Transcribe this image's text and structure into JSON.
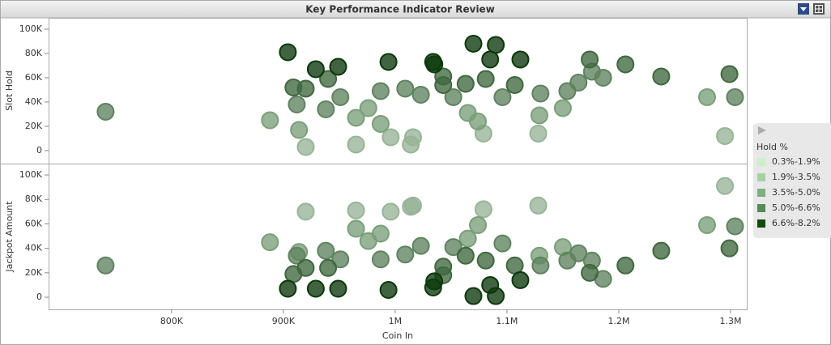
{
  "title": "Key Performance Indicator Review",
  "legend": {
    "title": "Hold %"
  },
  "chart_data": [
    {
      "type": "scatter",
      "ylabel": "Slot Hold",
      "xlim": [
        690000,
        1314500
      ],
      "ylim": [
        -10700,
        109300
      ],
      "yticks": [
        0,
        {
          "value": 20000,
          "label": "20K"
        },
        {
          "value": 40000,
          "label": "40K"
        },
        {
          "value": 60000,
          "label": "60K"
        },
        {
          "value": 80000,
          "label": "80K"
        },
        {
          "value": 100000,
          "label": "100K"
        }
      ],
      "series": [
        {
          "name": "0.3%-1.9%",
          "color": "#c9f0c9",
          "x": [
            920000,
            965000,
            1016000,
            996000,
            1014000,
            1079000,
            1128000,
            1295000
          ],
          "values": [
            3000,
            5000,
            11000,
            11000,
            5000,
            14000,
            14000,
            12000
          ]
        },
        {
          "name": "1.9%-3.5%",
          "color": "#a3d3a3",
          "x": [
            888000,
            1279000,
            1150000,
            1129000,
            976000,
            1074000,
            1065000,
            987000,
            965000,
            914000
          ],
          "values": [
            25000,
            44000,
            35000,
            29000,
            35000,
            24000,
            31000,
            22000,
            27000,
            17000
          ]
        },
        {
          "name": "3.5%-5.0%",
          "color": "#7fae7f",
          "x": [
            741000,
            1304000,
            1186000,
            1176000,
            1164000,
            1130000,
            938000,
            951000,
            987000,
            1009000,
            1023000,
            1052000,
            912000,
            1154000,
            1096000
          ],
          "values": [
            32000,
            44000,
            60000,
            65000,
            56000,
            47000,
            34000,
            44000,
            49000,
            51000,
            46000,
            44000,
            38000,
            49000,
            44000
          ]
        },
        {
          "name": "5.0%-6.6%",
          "color": "#548a54",
          "x": [
            1299000,
            1238000,
            1206000,
            1174000,
            909000,
            920000,
            1043000,
            1063000,
            1081000,
            1107000,
            940000,
            1043000
          ],
          "values": [
            63000,
            61000,
            71000,
            75000,
            52000,
            51000,
            54000,
            55000,
            59000,
            54000,
            59000,
            61000
          ]
        },
        {
          "name": "6.6%-8.2%",
          "color": "#0f4a0f",
          "x": [
            904000,
            929000,
            949000,
            994000,
            1034000,
            1070000,
            1090000,
            1085000,
            1112000,
            1035000
          ],
          "values": [
            81000,
            67000,
            69000,
            73000,
            73000,
            88000,
            87000,
            75000,
            75000,
            71000
          ]
        }
      ]
    },
    {
      "type": "scatter",
      "ylabel": "Jackpot Amount",
      "xlabel": "Coin In",
      "xlim": [
        690000,
        1314500
      ],
      "ylim": [
        -9900,
        109300
      ],
      "xticks": [
        {
          "value": 800000,
          "label": "800K"
        },
        {
          "value": 900000,
          "label": "900K"
        },
        {
          "value": 1000000,
          "label": "1M"
        },
        {
          "value": 1100000,
          "label": "1.1M"
        },
        {
          "value": 1200000,
          "label": "1.2M"
        },
        {
          "value": 1300000,
          "label": "1.3M"
        }
      ],
      "yticks": [
        0,
        {
          "value": 20000,
          "label": "20K"
        },
        {
          "value": 40000,
          "label": "40K"
        },
        {
          "value": 60000,
          "label": "60K"
        },
        {
          "value": 80000,
          "label": "80K"
        },
        {
          "value": 100000,
          "label": "100K"
        }
      ],
      "series": [
        {
          "color": "#c9f0c9",
          "x": [
            920000,
            965000,
            1016000,
            996000,
            1014000,
            1079000,
            1128000,
            1295000
          ],
          "values": [
            70000,
            71000,
            75000,
            70000,
            74000,
            72000,
            75000,
            91000
          ]
        },
        {
          "color": "#a3d3a3",
          "x": [
            888000,
            1279000,
            1150000,
            1129000,
            976000,
            1074000,
            1065000,
            987000,
            965000,
            914000
          ],
          "values": [
            45000,
            59000,
            41000,
            34000,
            46000,
            59000,
            48000,
            52000,
            56000,
            37000
          ]
        },
        {
          "color": "#7fae7f",
          "x": [
            741000,
            1304000,
            1186000,
            1176000,
            1164000,
            1130000,
            938000,
            951000,
            987000,
            1009000,
            1023000,
            1052000,
            912000,
            1154000,
            1096000
          ],
          "values": [
            26000,
            58000,
            15000,
            30000,
            36000,
            26000,
            38000,
            31000,
            31000,
            35000,
            42000,
            41000,
            34000,
            30000,
            44000
          ]
        },
        {
          "color": "#548a54",
          "x": [
            1299000,
            1238000,
            1206000,
            1174000,
            909000,
            920000,
            1043000,
            1063000,
            1081000,
            1107000,
            940000,
            1043000
          ],
          "values": [
            40000,
            38000,
            26000,
            20000,
            19000,
            24000,
            25000,
            34000,
            30000,
            26000,
            24000,
            18000
          ]
        },
        {
          "color": "#0f4a0f",
          "x": [
            904000,
            929000,
            949000,
            994000,
            1034000,
            1070000,
            1090000,
            1085000,
            1112000,
            1035000
          ],
          "values": [
            7000,
            7000,
            7000,
            6000,
            8000,
            1000,
            1000,
            10000,
            14000,
            13000
          ]
        }
      ]
    }
  ]
}
